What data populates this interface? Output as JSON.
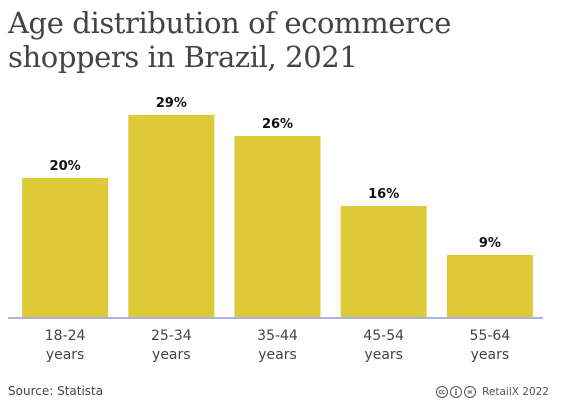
{
  "title": "Age distribution of ecommerce shoppers in Brazil, 2021",
  "source": "Source: Statista",
  "credit": "RetailX 2022",
  "icons": [
    "creative-commons-icon",
    "attribution-icon",
    "no-derivatives-icon"
  ],
  "colors": {
    "bar": "#ddca36",
    "baseline": "#aab4dd",
    "text": "#444444"
  },
  "chart_data": {
    "type": "bar",
    "categories": [
      [
        "18-24",
        "years"
      ],
      [
        "25-34",
        "years"
      ],
      [
        "35-44",
        "years"
      ],
      [
        "45-54",
        "years"
      ],
      [
        "55-64",
        "years"
      ]
    ],
    "values": [
      20,
      29,
      26,
      16,
      9
    ],
    "value_labels": [
      "20%",
      "29%",
      "26%",
      "16%",
      "9%"
    ],
    "xlabel": "",
    "ylabel": "",
    "ylim": [
      0,
      29
    ],
    "grid": false,
    "legend": "none"
  }
}
